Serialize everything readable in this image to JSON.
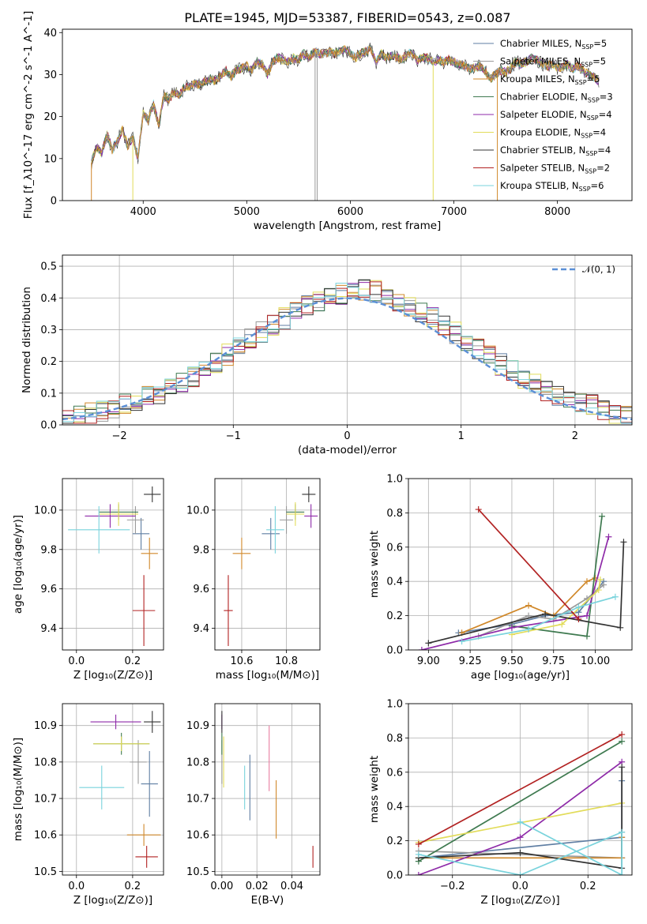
{
  "figure_title": "PLATE=1945, MJD=53387, FIBERID=0543, z=0.087",
  "models": [
    {
      "name": "Chabrier MILES",
      "nssp": "5",
      "color": "#5f7ea3"
    },
    {
      "name": "Salpeter MILES",
      "nssp": "5",
      "color": "#9a9a9a"
    },
    {
      "name": "Kroupa MILES",
      "nssp": "5",
      "color": "#d0882a"
    },
    {
      "name": "Chabrier ELODIE",
      "nssp": "3",
      "color": "#3f7a50"
    },
    {
      "name": "Salpeter ELODIE",
      "nssp": "4",
      "color": "#8e2aa8"
    },
    {
      "name": "Kroupa ELODIE",
      "nssp": "4",
      "color": "#e2dc5a"
    },
    {
      "name": "Chabrier STELIB",
      "nssp": "4",
      "color": "#333333"
    },
    {
      "name": "Salpeter STELIB",
      "nssp": "2",
      "color": "#b22222"
    },
    {
      "name": "Kroupa STELIB",
      "nssp": "6",
      "color": "#79d3dc"
    }
  ],
  "chart_data": [
    {
      "id": "spectrum",
      "type": "line",
      "xlabel": "wavelength [Angstrom, rest frame]",
      "ylabel": "Flux [f_λ10^-17 erg cm^-2 s^-1 A^-1]",
      "xlim": [
        3220,
        8720
      ],
      "ylim": [
        0,
        40.8
      ],
      "xticks": [
        "4000",
        "5000",
        "6000",
        "7000",
        "8000"
      ],
      "yticks": [
        "0",
        "10",
        "20",
        "30",
        "40"
      ],
      "x": [
        3500,
        3550,
        3600,
        3650,
        3700,
        3750,
        3800,
        3850,
        3900,
        3950,
        4000,
        4050,
        4100,
        4150,
        4200,
        4250,
        4300,
        4350,
        4400,
        4450,
        4500,
        4550,
        4600,
        4650,
        4700,
        4750,
        4800,
        4850,
        4900,
        4950,
        5000,
        5050,
        5100,
        5150,
        5200,
        5250,
        5300,
        5350,
        5400,
        5450,
        5500,
        5550,
        5600,
        5650,
        5700,
        5750,
        5800,
        5850,
        5900,
        5950,
        6000,
        6050,
        6100,
        6150,
        6200,
        6250,
        6300,
        6350,
        6400,
        6450,
        6500,
        6550,
        6600,
        6650,
        6700,
        6750,
        6800,
        6850,
        6900,
        6950,
        7000,
        7050,
        7100,
        7150,
        7200,
        7250,
        7300,
        7350,
        7400,
        7450,
        7500,
        7550,
        7600,
        7650,
        7700,
        7750,
        7800,
        7850,
        7900,
        7950,
        8000,
        8050,
        8100,
        8150,
        8200,
        8250,
        8300,
        8350,
        8400
      ],
      "y": [
        9,
        13,
        11,
        16,
        12,
        14,
        17,
        13,
        15,
        10,
        21,
        19,
        23,
        18,
        25,
        24,
        26,
        25,
        27,
        27,
        28,
        27.5,
        28.5,
        29,
        28.5,
        30,
        31,
        29.5,
        31,
        31.5,
        32,
        31,
        33,
        32.5,
        30,
        33,
        34,
        33.5,
        33,
        34,
        33.5,
        35,
        34,
        35.5,
        35,
        35,
        35.5,
        35,
        35.5,
        36,
        35,
        34,
        35,
        35.5,
        36,
        33,
        35,
        34,
        34.5,
        34,
        33.5,
        35,
        35,
        33.5,
        34,
        34,
        33,
        33.5,
        33,
        33.5,
        33,
        32.5,
        32,
        31.5,
        31.5,
        32,
        31,
        29,
        30,
        31,
        30.5,
        31.5,
        33,
        32.5,
        33,
        34,
        33.5,
        32.5,
        32,
        32.5,
        31.5,
        32,
        32.5,
        31.5,
        32,
        31,
        30,
        29.5,
        28.5
      ],
      "dropouts": [
        {
          "x": 3500,
          "model": "Kroupa MILES"
        },
        {
          "x": 3900,
          "model": "Kroupa ELODIE"
        },
        {
          "x": 5660,
          "model": "Salpeter MILES"
        },
        {
          "x": 5680,
          "model": "Salpeter MILES"
        },
        {
          "x": 6800,
          "model": "Kroupa ELODIE"
        },
        {
          "x": 7420,
          "model": "Kroupa MILES"
        }
      ]
    },
    {
      "id": "residuals",
      "type": "bar",
      "xlabel": "(data-model)/error",
      "ylabel": "Normed distribution",
      "xlim": [
        -2.5,
        2.5
      ],
      "ylim": [
        0,
        0.535
      ],
      "xticks": [
        "−2",
        "−1",
        "0",
        "1",
        "2"
      ],
      "yticks": [
        "0.0",
        "0.1",
        "0.2",
        "0.3",
        "0.4",
        "0.5"
      ],
      "legend": "𝒩(0, 1)",
      "bin_edges_start": -2.5,
      "bin_width": 0.1,
      "bin_values": [
        0.02,
        0.03,
        0.035,
        0.04,
        0.05,
        0.065,
        0.075,
        0.09,
        0.1,
        0.12,
        0.135,
        0.155,
        0.17,
        0.195,
        0.22,
        0.245,
        0.27,
        0.295,
        0.315,
        0.335,
        0.355,
        0.375,
        0.39,
        0.405,
        0.415,
        0.425,
        0.425,
        0.42,
        0.41,
        0.39,
        0.375,
        0.355,
        0.335,
        0.31,
        0.29,
        0.265,
        0.24,
        0.215,
        0.19,
        0.17,
        0.15,
        0.13,
        0.11,
        0.095,
        0.08,
        0.07,
        0.06,
        0.05,
        0.035,
        0.025
      ],
      "curve": "gaussian(0,1)"
    },
    {
      "id": "age-vs-Z",
      "type": "scatter",
      "xlabel": "Z [log₁₀(Z/Z⊙)]",
      "ylabel": "age  [log₁₀(age/yr)]",
      "xlim": [
        -0.05,
        0.31
      ],
      "ylim": [
        9.29,
        10.16
      ],
      "xticks": [
        "0.0",
        "0.2"
      ],
      "yticks": [
        "9.4",
        "9.6",
        "9.8",
        "10.0"
      ],
      "points": [
        {
          "model": "Chabrier MILES",
          "x": 0.23,
          "y": 9.88,
          "xerr": 0.03,
          "yerr": 0.08
        },
        {
          "model": "Salpeter MILES",
          "x": 0.21,
          "y": 9.95,
          "xerr": 0.03,
          "yerr": 0.07
        },
        {
          "model": "Kroupa MILES",
          "x": 0.26,
          "y": 9.78,
          "xerr": 0.03,
          "yerr": 0.08
        },
        {
          "model": "Chabrier ELODIE",
          "x": 0.15,
          "y": 9.99,
          "xerr": 0.07,
          "yerr": 0.04
        },
        {
          "model": "Salpeter ELODIE",
          "x": 0.12,
          "y": 9.97,
          "xerr": 0.09,
          "yerr": 0.06
        },
        {
          "model": "Kroupa ELODIE",
          "x": 0.15,
          "y": 9.98,
          "xerr": 0.07,
          "yerr": 0.06
        },
        {
          "model": "Chabrier STELIB",
          "x": 0.27,
          "y": 10.08,
          "xerr": 0.03,
          "yerr": 0.04
        },
        {
          "model": "Salpeter STELIB",
          "x": 0.24,
          "y": 9.49,
          "xerr": 0.04,
          "yerr": 0.18
        },
        {
          "model": "Kroupa STELIB",
          "x": 0.08,
          "y": 9.9,
          "xerr": 0.11,
          "yerr": 0.12
        }
      ]
    },
    {
      "id": "age-vs-mass",
      "type": "scatter",
      "xlabel": "mass [log₁₀(M/M⊙)]",
      "ylabel": "",
      "xlim": [
        10.48,
        10.95
      ],
      "ylim": [
        9.29,
        10.16
      ],
      "xticks": [
        "10.6",
        "10.8"
      ],
      "yticks": [
        "9.4",
        "9.6",
        "9.8",
        "10.0"
      ],
      "points": [
        {
          "model": "Chabrier MILES",
          "x": 10.73,
          "y": 9.88,
          "xerr": 0.04,
          "yerr": 0.08
        },
        {
          "model": "Salpeter MILES",
          "x": 10.8,
          "y": 9.95,
          "xerr": 0.03,
          "yerr": 0.07
        },
        {
          "model": "Kroupa MILES",
          "x": 10.6,
          "y": 9.78,
          "xerr": 0.04,
          "yerr": 0.08
        },
        {
          "model": "Chabrier ELODIE",
          "x": 10.84,
          "y": 9.99,
          "xerr": 0.04,
          "yerr": 0.04
        },
        {
          "model": "Salpeter ELODIE",
          "x": 10.91,
          "y": 9.97,
          "xerr": 0.03,
          "yerr": 0.06
        },
        {
          "model": "Kroupa ELODIE",
          "x": 10.84,
          "y": 9.98,
          "xerr": 0.04,
          "yerr": 0.06
        },
        {
          "model": "Chabrier STELIB",
          "x": 10.9,
          "y": 10.08,
          "xerr": 0.03,
          "yerr": 0.04
        },
        {
          "model": "Salpeter STELIB",
          "x": 10.54,
          "y": 9.49,
          "xerr": 0.02,
          "yerr": 0.18
        },
        {
          "model": "Kroupa STELIB",
          "x": 10.75,
          "y": 9.9,
          "xerr": 0.04,
          "yerr": 0.12
        }
      ]
    },
    {
      "id": "massweight-vs-age",
      "type": "line",
      "xlabel": "age  [log₁₀(age/yr)]",
      "ylabel": "mass weight",
      "xlim": [
        8.88,
        10.22
      ],
      "ylim": [
        0,
        1
      ],
      "xticks": [
        "9.00",
        "9.25",
        "9.50",
        "9.75",
        "10.00"
      ],
      "yticks": [
        "0.0",
        "0.2",
        "0.4",
        "0.6",
        "0.8",
        "1.0"
      ],
      "series": [
        {
          "model": "Chabrier MILES",
          "x": [
            9.18,
            9.5,
            9.7,
            9.9,
            10.05
          ],
          "y": [
            0.1,
            0.15,
            0.2,
            0.22,
            0.4
          ]
        },
        {
          "model": "Salpeter MILES",
          "x": [
            9.3,
            9.6,
            9.75,
            9.95,
            10.05
          ],
          "y": [
            0.08,
            0.2,
            0.18,
            0.3,
            0.38
          ]
        },
        {
          "model": "Kroupa MILES",
          "x": [
            9.2,
            9.6,
            9.75,
            9.95,
            10.0
          ],
          "y": [
            0.1,
            0.26,
            0.2,
            0.4,
            0.42
          ]
        },
        {
          "model": "Chabrier ELODIE",
          "x": [
            9.5,
            9.95,
            10.04
          ],
          "y": [
            0.14,
            0.08,
            0.78
          ]
        },
        {
          "model": "Salpeter ELODIE",
          "x": [
            8.96,
            9.5,
            9.95,
            10.08
          ],
          "y": [
            0.0,
            0.13,
            0.2,
            0.66
          ]
        },
        {
          "model": "Kroupa ELODIE",
          "x": [
            9.5,
            9.8,
            10.02,
            10.03
          ],
          "y": [
            0.09,
            0.15,
            0.35,
            0.41
          ]
        },
        {
          "model": "Chabrier STELIB",
          "x": [
            9.0,
            9.7,
            10.15,
            10.17
          ],
          "y": [
            0.04,
            0.21,
            0.13,
            0.63
          ]
        },
        {
          "model": "Salpeter STELIB",
          "x": [
            9.3,
            9.9
          ],
          "y": [
            0.82,
            0.18
          ]
        },
        {
          "model": "Kroupa STELIB",
          "x": [
            9.2,
            9.6,
            9.9,
            10.12
          ],
          "y": [
            0.05,
            0.12,
            0.25,
            0.31
          ]
        }
      ]
    },
    {
      "id": "mass-vs-Z",
      "type": "scatter",
      "xlabel": "Z [log₁₀(Z/Z⊙)]",
      "ylabel": "mass [log₁₀(M/M⊙)]",
      "xlim": [
        -0.05,
        0.31
      ],
      "ylim": [
        10.49,
        10.96
      ],
      "xticks": [
        "0.0",
        "0.2"
      ],
      "yticks": [
        "10.5",
        "10.6",
        "10.7",
        "10.8",
        "10.9"
      ],
      "points": [
        {
          "model": "Chabrier MILES",
          "x": 0.26,
          "y": 10.74,
          "xerr": 0.03,
          "yerr": 0.09
        },
        {
          "model": "Salpeter MILES",
          "x": 0.22,
          "y": 10.8,
          "xerr": 0.03,
          "yerr": 0.06
        },
        {
          "model": "Kroupa MILES",
          "x": 0.24,
          "y": 10.6,
          "xerr": 0.06,
          "yerr": 0.03
        },
        {
          "model": "Chabrier ELODIE",
          "x": 0.16,
          "y": 10.85,
          "xerr": 0.1,
          "yerr": 0.03
        },
        {
          "model": "Salpeter ELODIE",
          "x": 0.14,
          "y": 10.91,
          "xerr": 0.09,
          "yerr": 0.02
        },
        {
          "model": "Kroupa ELODIE",
          "x": 0.16,
          "y": 10.85,
          "xerr": 0.1,
          "yerr": 0.02
        },
        {
          "model": "Chabrier STELIB",
          "x": 0.27,
          "y": 10.91,
          "xerr": 0.03,
          "yerr": 0.03
        },
        {
          "model": "Salpeter STELIB",
          "x": 0.25,
          "y": 10.54,
          "xerr": 0.04,
          "yerr": 0.03
        },
        {
          "model": "Kroupa STELIB",
          "x": 0.09,
          "y": 10.73,
          "xerr": 0.08,
          "yerr": 0.06
        }
      ]
    },
    {
      "id": "mass-vs-EBV",
      "type": "scatter",
      "xlabel": "E(B-V)",
      "ylabel": "",
      "xlim": [
        -0.004,
        0.056
      ],
      "ylim": [
        10.49,
        10.96
      ],
      "xticks": [
        "0.00",
        "0.02",
        "0.04"
      ],
      "yticks": [
        "10.5",
        "10.6",
        "10.7",
        "10.8",
        "10.9"
      ],
      "points": [
        {
          "model": "Chabrier MILES",
          "x": 0.016,
          "y": 10.73,
          "xerr": 0.0,
          "yerr": 0.09
        },
        {
          "model": "Salpeter MILES",
          "x": 0.0,
          "y": 10.8,
          "xerr": 0.0,
          "yerr": 0.06
        },
        {
          "model": "Kroupa MILES",
          "x": 0.031,
          "y": 10.67,
          "xerr": 0.0,
          "yerr": 0.08
        },
        {
          "model": "Chabrier ELODIE",
          "x": 0.0,
          "y": 10.85,
          "xerr": 0.0,
          "yerr": 0.03
        },
        {
          "model": "Salpeter ELODIE",
          "x": 0.0,
          "y": 10.91,
          "xerr": 0.0,
          "yerr": 0.02
        },
        {
          "model": "Kroupa ELODIE",
          "x": 0.001,
          "y": 10.8,
          "xerr": 0.0,
          "yerr": 0.07
        },
        {
          "model": "Chabrier STELIB",
          "x": 0.0,
          "y": 10.91,
          "xerr": 0.0,
          "yerr": 0.03
        },
        {
          "model": "Salpeter STELIB",
          "x": 0.052,
          "y": 10.54,
          "xerr": 0.0,
          "yerr": 0.03
        },
        {
          "model": "Kroupa STELIB",
          "x": 0.013,
          "y": 10.73,
          "xerr": 0.0,
          "yerr": 0.06
        }
      ],
      "pink": {
        "x": 0.027,
        "y": 10.81,
        "yerr": 0.09
      }
    },
    {
      "id": "massweight-vs-Z",
      "type": "line",
      "xlabel": "Z [log₁₀(Z/Z⊙)]",
      "ylabel": "mass weight",
      "xlim": [
        -0.33,
        0.33
      ],
      "ylim": [
        0,
        1
      ],
      "xticks": [
        "−0.2",
        "0.0",
        "0.2"
      ],
      "yticks": [
        "0.0",
        "0.2",
        "0.4",
        "0.6",
        "0.8",
        "1.0"
      ],
      "series": [
        {
          "model": "Chabrier MILES",
          "x": [
            -0.3,
            0.3,
            0.3,
            0.3
          ],
          "y": [
            0.1,
            0.22,
            0.55,
            0.1
          ]
        },
        {
          "model": "Salpeter MILES",
          "x": [
            -0.3,
            0.3,
            0.3
          ],
          "y": [
            0.14,
            0.1,
            0.25
          ]
        },
        {
          "model": "Kroupa MILES",
          "x": [
            -0.3,
            0.3,
            0.3
          ],
          "y": [
            0.1,
            0.1,
            0.22
          ]
        },
        {
          "model": "Chabrier ELODIE",
          "x": [
            -0.3,
            0.3
          ],
          "y": [
            0.08,
            0.78
          ]
        },
        {
          "model": "Salpeter ELODIE",
          "x": [
            -0.3,
            0.0,
            0.3
          ],
          "y": [
            0.0,
            0.22,
            0.66
          ]
        },
        {
          "model": "Kroupa ELODIE",
          "x": [
            -0.3,
            0.3
          ],
          "y": [
            0.19,
            0.42
          ]
        },
        {
          "model": "Chabrier STELIB",
          "x": [
            -0.3,
            0.0,
            0.3,
            0.3
          ],
          "y": [
            0.1,
            0.13,
            0.04,
            0.63
          ]
        },
        {
          "model": "Salpeter STELIB",
          "x": [
            -0.3,
            0.3
          ],
          "y": [
            0.18,
            0.82
          ]
        },
        {
          "model": "Kroupa STELIB",
          "x": [
            -0.3,
            0.0,
            0.3,
            0.3,
            0.0
          ],
          "y": [
            0.12,
            0.0,
            0.25,
            0.0,
            0.31
          ]
        }
      ]
    }
  ]
}
